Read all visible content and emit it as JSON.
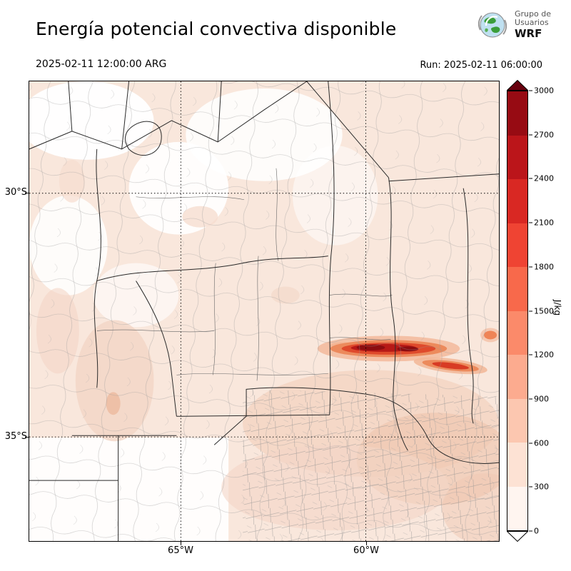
{
  "header": {
    "title": "Energía potencial convectiva disponible"
  },
  "logo": {
    "line1": "Grupo de",
    "line2": "Usuarios",
    "line3": "WRF"
  },
  "subheader": {
    "valid_time": "2025-02-11 12:00:00 ARG",
    "run_label": "Run: 2025-02-11 06:00:00"
  },
  "axes": {
    "lat": [
      "30°S",
      "35°S"
    ],
    "lon": [
      "65°W",
      "60°W"
    ]
  },
  "colorbar": {
    "unit": "J/kg",
    "ticks": [
      "0",
      "300",
      "600",
      "900",
      "1200",
      "1500",
      "1800",
      "2100",
      "2400",
      "2700",
      "3000"
    ],
    "segment_colors": [
      "#fff5f0",
      "#fde2d4",
      "#fcc7b0",
      "#fcab8f",
      "#fb8a6a",
      "#f8694b",
      "#ef4433",
      "#d92823",
      "#bb151a",
      "#970b13"
    ],
    "over_color": "#67000d",
    "under_color": "#ffffff"
  },
  "chart_data": {
    "type": "heatmap",
    "title": "Energía potencial convectiva disponible",
    "unit": "J/kg",
    "valid_time": "2025-02-11 12:00:00 ARG",
    "run_time": "Run: 2025-02-11 06:00:00",
    "colorbar_levels": [
      0,
      300,
      600,
      900,
      1200,
      1500,
      1800,
      2100,
      2400,
      2700,
      3000
    ],
    "colorbar_colors": [
      "#fff5f0",
      "#fde2d4",
      "#fcc7b0",
      "#fcab8f",
      "#fb8a6a",
      "#f8694b",
      "#ef4433",
      "#d92823",
      "#bb151a",
      "#970b13"
    ],
    "x_ticks": [
      "65°W",
      "60°W"
    ],
    "y_ticks": [
      "30°S",
      "35°S"
    ],
    "grid": "dotted lat/lon graticule at 30°S, 35°S, 65°W, 60°W",
    "legend_position": "right colorbar with over/under arrows",
    "features": [
      {
        "name": "high-cape-band",
        "description": "Narrow elongated E–W band of very high CAPE (approx. 1500–3000 J/kg) near 33.5°S between about 61°W and 58°W, with darkest core above 2400 J/kg"
      },
      {
        "name": "secondary-band",
        "description": "Shorter band of CAPE approx. 900–1800 J/kg just southeast of the main band near 34°S, 58.5°W"
      },
      {
        "name": "moderate-cape-area",
        "description": "Broad area of CAPE approx. 300–900 J/kg over the southeastern part of the domain (roughly 33–35.5°S)"
      },
      {
        "name": "background-field",
        "description": "CAPE approx. 0–300 J/kg over most of the remaining domain; near-zero (white) patches in the northwest"
      }
    ]
  }
}
